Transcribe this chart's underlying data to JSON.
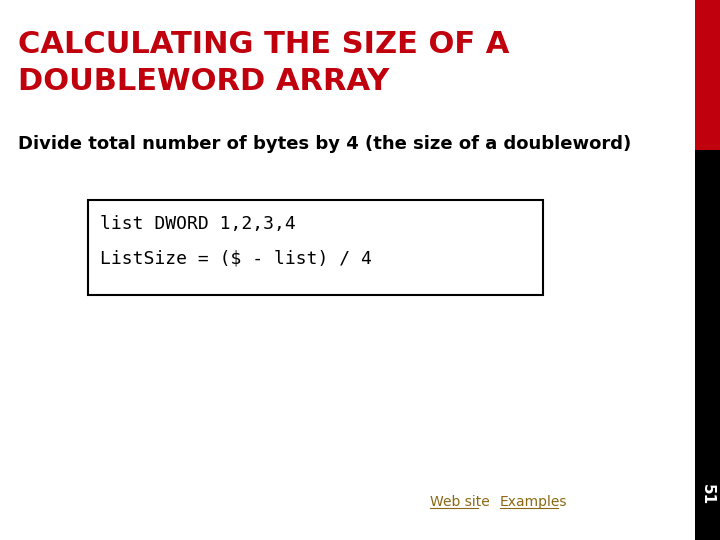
{
  "title_line1": "CALCULATING THE SIZE OF A",
  "title_line2": "DOUBLEWORD ARRAY",
  "title_color": "#C0000C",
  "subtitle": "Divide total number of bytes by 4 (the size of a doubleword)",
  "subtitle_color": "#000000",
  "code_line1": "list DWORD 1,2,3,4",
  "code_line2": "ListSize = ($ - list) / 4",
  "code_color": "#000000",
  "code_box_border": "#000000",
  "code_bg": "#ffffff",
  "bg_color": "#ffffff",
  "right_bar_top_color": "#C0000C",
  "right_bar_bottom_color": "#000000",
  "page_number": "51",
  "page_number_color": "#ffffff",
  "link_color": "#8B6914",
  "web_site_text": "Web site",
  "examples_text": "Examples"
}
